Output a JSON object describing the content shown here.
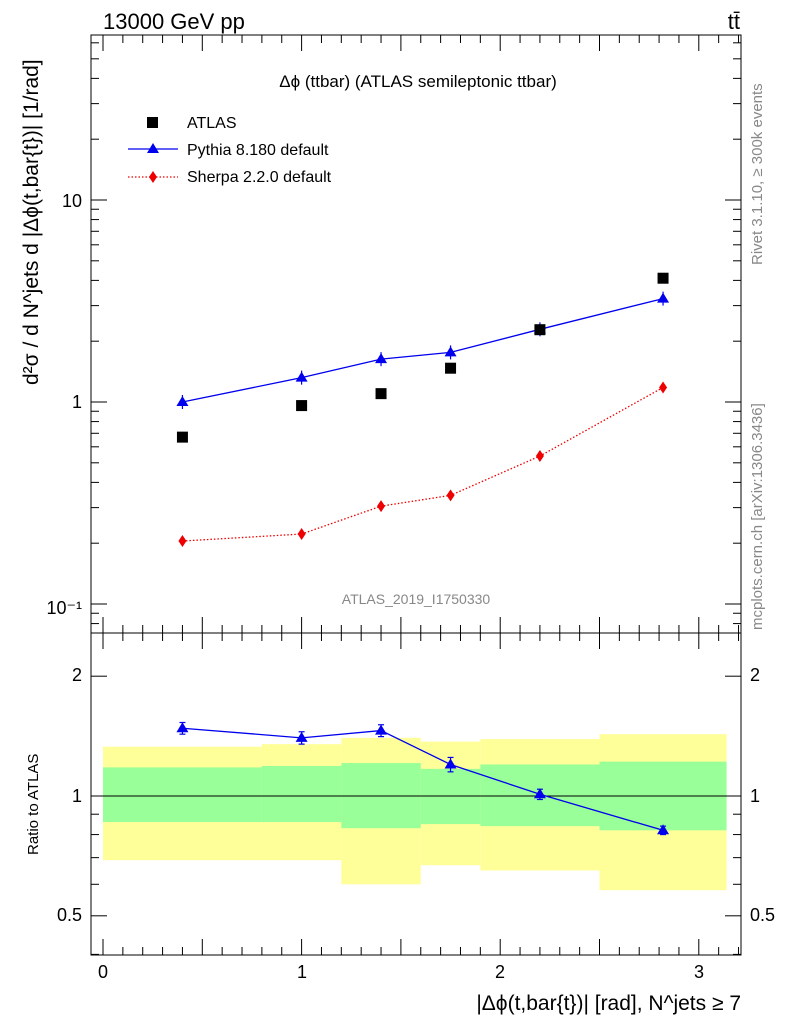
{
  "header": {
    "energy_label": "13000 GeV pp",
    "process_label": "tt̄"
  },
  "side": {
    "rivet_label": "Rivet 3.1.10, ≥ 300k events",
    "source_label": "mcplots.cern.ch [arXiv:1306.3436]"
  },
  "colors": {
    "atlas": "#000000",
    "pythia": "#0000ee",
    "sherpa": "#ee0000",
    "band_inner": "#99ff99",
    "band_outer": "#ffff99"
  },
  "chart_data": [
    {
      "type": "scatter",
      "title": "Δϕ (ttbar) (ATLAS semileptonic ttbar)",
      "analysis_label": "ATLAS_2019_I1750330",
      "ylabel": "d²σ / d N^jets d |Δϕ(t,bar{t})| [1/rad]",
      "xlabel": "|Δϕ(t,bar{t})| [rad], N^jets ≥ 7",
      "yscale": "log",
      "xlim": [
        -0.1,
        3.2
      ],
      "ylim": [
        0.075,
        50
      ],
      "y_ticks": [
        "10⁻¹",
        "1",
        "10"
      ],
      "legend_position": "top-left",
      "series": [
        {
          "name": "ATLAS",
          "marker": "square",
          "x": [
            0.4,
            1.0,
            1.4,
            1.75,
            2.2,
            2.82
          ],
          "y": [
            0.67,
            0.96,
            1.1,
            1.47,
            2.28,
            4.1
          ]
        },
        {
          "name": "Pythia 8.180 default",
          "marker": "triangle",
          "line": "solid",
          "x": [
            0.4,
            1.0,
            1.4,
            1.75,
            2.2,
            2.82
          ],
          "y": [
            1.0,
            1.32,
            1.63,
            1.76,
            2.29,
            3.25
          ]
        },
        {
          "name": "Sherpa 2.2.0 default",
          "marker": "diamond",
          "line": "dotted",
          "x": [
            0.4,
            1.0,
            1.4,
            1.75,
            2.2,
            2.82
          ],
          "y": [
            0.205,
            0.222,
            0.305,
            0.345,
            0.54,
            1.18
          ]
        }
      ]
    },
    {
      "type": "line",
      "ylabel": "Ratio to ATLAS",
      "xlim": [
        -0.1,
        3.2
      ],
      "ylim": [
        0.4,
        2.3
      ],
      "x_ticks": [
        "0",
        "1",
        "2",
        "3"
      ],
      "y_ticks": [
        "0.5",
        "1",
        "2"
      ],
      "bands": {
        "edges": [
          0.0,
          0.8,
          1.2,
          1.6,
          1.9,
          2.5,
          3.14
        ],
        "outer_low": [
          0.69,
          0.69,
          0.6,
          0.67,
          0.65,
          0.58
        ],
        "outer_high": [
          1.33,
          1.35,
          1.4,
          1.37,
          1.39,
          1.43
        ],
        "inner_low": [
          0.86,
          0.86,
          0.83,
          0.85,
          0.84,
          0.82
        ],
        "inner_high": [
          1.18,
          1.19,
          1.21,
          1.17,
          1.2,
          1.22
        ]
      },
      "series": [
        {
          "name": "Pythia 8.180 default",
          "x": [
            0.4,
            1.0,
            1.4,
            1.75,
            2.2,
            2.82
          ],
          "y": [
            1.48,
            1.4,
            1.46,
            1.2,
            1.01,
            0.82
          ],
          "err": [
            0.05,
            0.05,
            0.05,
            0.05,
            0.03,
            0.02
          ]
        }
      ]
    }
  ]
}
